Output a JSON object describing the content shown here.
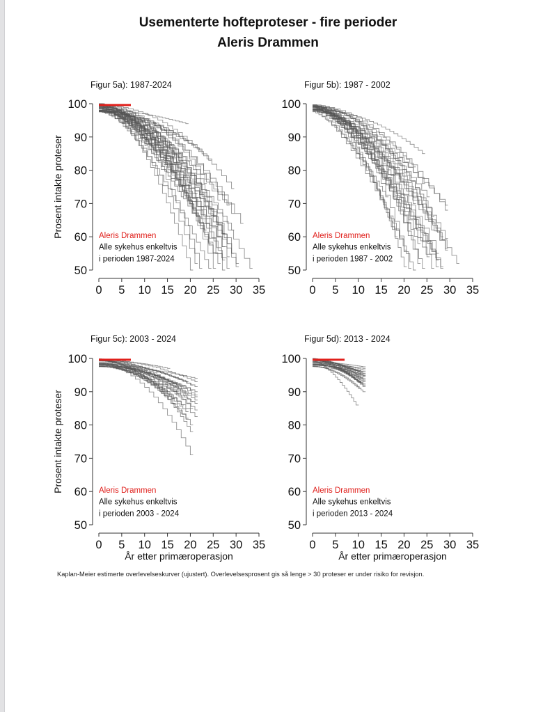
{
  "page": {
    "title": "Usementerte hofteproteser - fire perioder",
    "subtitle": "Aleris Drammen",
    "caption": "Kaplan-Meier estimerte overlevelseskurver (ujustert). Overlevelsesprosent gis så lenge > 30 proteser er under risiko for revisjon."
  },
  "colors": {
    "highlight": "#e0201c",
    "others": "#555555",
    "axis": "#333333"
  },
  "chart_data": [
    {
      "type": "line",
      "panel": "a",
      "title": "Figur 5a): 1987-2024",
      "xlabel": "",
      "ylabel": "Prosent intakte proteser",
      "xlim": [
        0,
        35
      ],
      "ylim": [
        50,
        100
      ],
      "xticks": [
        0,
        5,
        10,
        15,
        20,
        25,
        30,
        35
      ],
      "yticks": [
        50,
        60,
        70,
        80,
        90,
        100
      ],
      "legend": [
        "Aleris Drammen",
        "Alle sykehus enkeltvis",
        "i perioden 1987-2024"
      ],
      "legend_placement": "bottom-left",
      "highlight_series": {
        "name": "Aleris Drammen",
        "x": [
          0,
          7
        ],
        "y": [
          99.6,
          99.6
        ]
      },
      "others_summary": {
        "description": "Individual hospital KM curves (approx. end year, end survival %)",
        "curves": [
          [
            19,
            94
          ],
          [
            19,
            89
          ],
          [
            29,
            74.5
          ],
          [
            24,
            83
          ],
          [
            22,
            86
          ],
          [
            28,
            69.5
          ],
          [
            29,
            67
          ],
          [
            31,
            64
          ],
          [
            29,
            62
          ],
          [
            28,
            58
          ],
          [
            27,
            57
          ],
          [
            26,
            52
          ],
          [
            33,
            50.5
          ],
          [
            30,
            51
          ],
          [
            28,
            50.5
          ],
          [
            27,
            50
          ],
          [
            24,
            50.5
          ],
          [
            22,
            50.5
          ],
          [
            20,
            50
          ],
          [
            21,
            52
          ],
          [
            25,
            55
          ],
          [
            26,
            60
          ],
          [
            23,
            62
          ],
          [
            27,
            53
          ],
          [
            29,
            55
          ],
          [
            25,
            66
          ],
          [
            20,
            70
          ],
          [
            18,
            72
          ],
          [
            16,
            80
          ],
          [
            12,
            86
          ],
          [
            10,
            88
          ],
          [
            27,
            61
          ],
          [
            22,
            64
          ],
          [
            24,
            58
          ],
          [
            19,
            78
          ],
          [
            23,
            76
          ],
          [
            26,
            71
          ],
          [
            17,
            84
          ],
          [
            21,
            73
          ],
          [
            30,
            52
          ],
          [
            25,
            50.5
          ],
          [
            28,
            54
          ]
        ]
      }
    },
    {
      "type": "line",
      "panel": "b",
      "title": "Figur 5b): 1987 - 2002",
      "xlabel": "",
      "ylabel": "",
      "xlim": [
        0,
        35
      ],
      "ylim": [
        50,
        100
      ],
      "xticks": [
        0,
        5,
        10,
        15,
        20,
        25,
        30,
        35
      ],
      "yticks": [
        50,
        60,
        70,
        80,
        90,
        100
      ],
      "legend": [
        "Aleris Drammen",
        "Alle sykehus enkeltvis",
        "i perioden 1987 - 2002"
      ],
      "legend_placement": "bottom-left",
      "highlight_series": null,
      "others_summary": {
        "description": "Individual hospital KM curves (approx. end year, end survival %)",
        "curves": [
          [
            24,
            85
          ],
          [
            22,
            81
          ],
          [
            29,
            69.5
          ],
          [
            29,
            68
          ],
          [
            26,
            66
          ],
          [
            25,
            72
          ],
          [
            29,
            59.5
          ],
          [
            29,
            56.5
          ],
          [
            29,
            56
          ],
          [
            31.5,
            52
          ],
          [
            28,
            51
          ],
          [
            27,
            51
          ],
          [
            27,
            53
          ],
          [
            26,
            50.5
          ],
          [
            24,
            50.5
          ],
          [
            22,
            50
          ],
          [
            21,
            50.5
          ],
          [
            20,
            51
          ],
          [
            23,
            52
          ],
          [
            25,
            54
          ],
          [
            28,
            60
          ],
          [
            26,
            62
          ],
          [
            20,
            56
          ],
          [
            18,
            60
          ],
          [
            21,
            64
          ],
          [
            24,
            76
          ],
          [
            19,
            78
          ],
          [
            22,
            70
          ],
          [
            27,
            55
          ],
          [
            28,
            50.5
          ],
          [
            16,
            72
          ],
          [
            23,
            58
          ]
        ]
      }
    },
    {
      "type": "line",
      "panel": "c",
      "title": "Figur 5c): 2003 - 2024",
      "xlabel": "År etter primæroperasjon",
      "ylabel": "Prosent intakte proteser",
      "xlim": [
        0,
        35
      ],
      "ylim": [
        50,
        100
      ],
      "xticks": [
        0,
        5,
        10,
        15,
        20,
        25,
        30,
        35
      ],
      "yticks": [
        50,
        60,
        70,
        80,
        90,
        100
      ],
      "legend": [
        "Aleris Drammen",
        "Alle sykehus enkeltvis",
        "i perioden 2003 - 2024"
      ],
      "legend_placement": "bottom-left",
      "highlight_series": {
        "name": "Aleris Drammen",
        "x": [
          0,
          7
        ],
        "y": [
          99.6,
          99.6
        ]
      },
      "others_summary": {
        "description": "Individual hospital KM curves (approx. end year, end survival %)",
        "curves": [
          [
            15,
            97
          ],
          [
            21,
            94
          ],
          [
            20,
            92
          ],
          [
            21,
            89
          ],
          [
            21,
            88.5
          ],
          [
            21,
            86.5
          ],
          [
            20,
            87
          ],
          [
            19,
            84
          ],
          [
            21,
            82.5
          ],
          [
            20,
            80
          ],
          [
            20,
            78
          ],
          [
            20,
            71
          ],
          [
            17,
            90
          ],
          [
            18,
            91
          ],
          [
            19,
            93
          ],
          [
            21,
            90
          ],
          [
            20,
            85
          ],
          [
            16,
            88
          ],
          [
            21,
            91.5
          ],
          [
            19,
            89
          ],
          [
            18,
            86
          ],
          [
            21,
            93
          ],
          [
            20,
            90.5
          ],
          [
            17,
            92
          ],
          [
            21,
            87.5
          ],
          [
            15,
            90
          ],
          [
            21,
            84.5
          ],
          [
            19,
            82
          ]
        ]
      }
    },
    {
      "type": "line",
      "panel": "d",
      "title": "Figur 5d): 2013 - 2024",
      "xlabel": "År etter primæroperasjon",
      "ylabel": "",
      "xlim": [
        0,
        35
      ],
      "ylim": [
        50,
        100
      ],
      "xticks": [
        0,
        5,
        10,
        15,
        20,
        25,
        30,
        35
      ],
      "yticks": [
        50,
        60,
        70,
        80,
        90,
        100
      ],
      "legend": [
        "Aleris Drammen",
        "Alle sykehus enkeltvis",
        "i perioden 2013 - 2024"
      ],
      "legend_placement": "bottom-left",
      "highlight_series": {
        "name": "Aleris Drammen",
        "x": [
          0,
          7
        ],
        "y": [
          99.6,
          99.6
        ]
      },
      "others_summary": {
        "description": "Individual hospital KM curves (approx. end year, end survival %)",
        "curves": [
          [
            11,
            97
          ],
          [
            11,
            96.5
          ],
          [
            11,
            96
          ],
          [
            11,
            95.5
          ],
          [
            11,
            95
          ],
          [
            11,
            94.5
          ],
          [
            11,
            94
          ],
          [
            11,
            93.5
          ],
          [
            11,
            93
          ],
          [
            11,
            92.5
          ],
          [
            11,
            92
          ],
          [
            11,
            91.5
          ],
          [
            10,
            91
          ],
          [
            11,
            90
          ],
          [
            11,
            97.5
          ],
          [
            10,
            95
          ],
          [
            10,
            93
          ],
          [
            9.5,
            86
          ],
          [
            11,
            96
          ],
          [
            10,
            94
          ],
          [
            11,
            92
          ],
          [
            11,
            95
          ],
          [
            10,
            96
          ],
          [
            11,
            93.5
          ],
          [
            11,
            94.8
          ],
          [
            10,
            92.8
          ]
        ]
      }
    }
  ]
}
